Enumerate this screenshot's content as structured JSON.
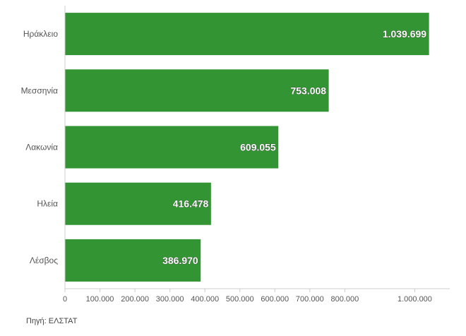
{
  "chart_data": {
    "type": "bar",
    "orientation": "horizontal",
    "categories": [
      "Ηράκλειο",
      "Μεσσηνία",
      "Λακωνία",
      "Ηλεία",
      "Λέσβος"
    ],
    "values": [
      1039699,
      753008,
      609055,
      416478,
      386970
    ],
    "data_labels": [
      "1.039.699",
      "753.008",
      "609.055",
      "416.478",
      "386.970"
    ],
    "x_ticks": [
      0,
      100000,
      200000,
      300000,
      400000,
      500000,
      600000,
      700000,
      800000,
      1000000
    ],
    "x_tick_labels": [
      "0",
      "100.000",
      "200.000",
      "300.000",
      "400.000",
      "500.000",
      "600.000",
      "700.000",
      "800.000",
      "1.000.000"
    ],
    "xlim": [
      0,
      1100000
    ],
    "title": "",
    "xlabel": "",
    "ylabel": "",
    "grid": false,
    "legend": "none",
    "colors": {
      "bar": "#339433",
      "axis": "#cccccc",
      "label_text": "#ffffff"
    }
  },
  "footer": {
    "source": "Πηγή: ΕΛΣΤΑΤ"
  }
}
